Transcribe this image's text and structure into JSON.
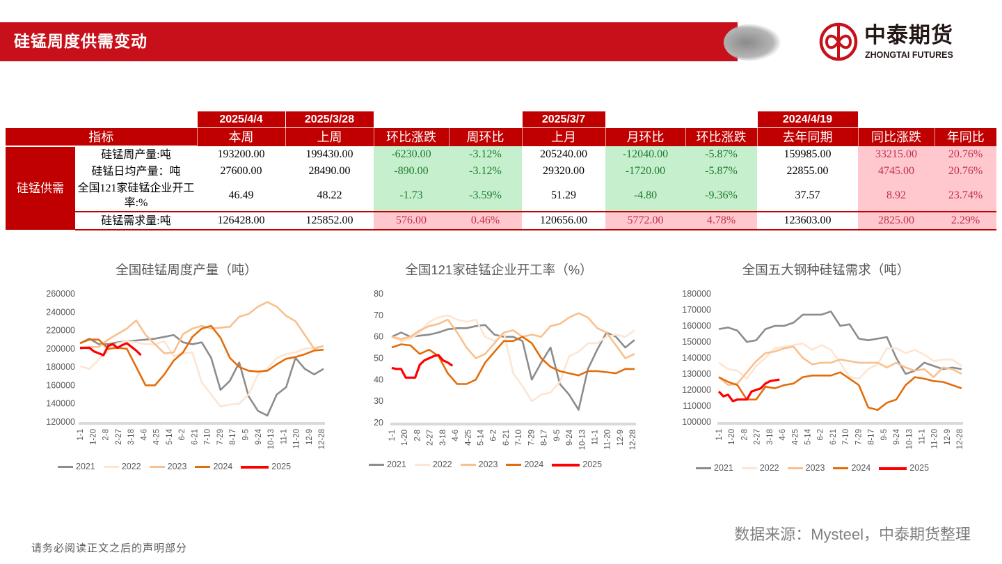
{
  "header": {
    "title": "硅锰周度供需变动"
  },
  "logo": {
    "name_cn": "中泰期货",
    "name_en": "ZHONGTAI FUTURES",
    "color": "#c8101a"
  },
  "table": {
    "dates": [
      "2025/4/4",
      "2025/3/28",
      "2025/3/7",
      "2024/4/19"
    ],
    "indicator_header": "指标",
    "headers": [
      "本周",
      "上周",
      "环比涨跌",
      "周环比",
      "上月",
      "月环比",
      "环比涨跌",
      "去年同期",
      "同比涨跌",
      "年同比"
    ],
    "group_label": "硅锰供需",
    "rows": [
      {
        "label": "硅锰周产量:吨",
        "values": [
          "193200.00",
          "199430.00",
          "-6230.00",
          "-3.12%",
          "205240.00",
          "-12040.00",
          "-5.87%",
          "159985.00",
          "33215.00",
          "20.76%"
        ]
      },
      {
        "label": "硅锰日均产量：吨",
        "values": [
          "27600.00",
          "28490.00",
          "-890.00",
          "-3.12%",
          "29320.00",
          "-1720.00",
          "-5.87%",
          "22855.00",
          "4745.00",
          "20.76%"
        ]
      },
      {
        "label": "全国121家硅锰企业开工率:%",
        "values": [
          "46.49",
          "48.22",
          "-1.73",
          "-3.59%",
          "51.29",
          "-4.80",
          "-9.36%",
          "37.57",
          "8.92",
          "23.74%"
        ]
      },
      {
        "label": "硅锰需求量:吨",
        "values": [
          "126428.00",
          "125852.00",
          "576.00",
          "0.46%",
          "120656.00",
          "5772.00",
          "4.78%",
          "123603.00",
          "2825.00",
          "2.29%"
        ]
      }
    ],
    "colors": {
      "header": "#c00000",
      "down_bg": "#c6efce",
      "up_bg": "#ffc7ce"
    }
  },
  "chart_data": [
    {
      "type": "line",
      "title": "全国硅锰周度产量（吨）",
      "ylim": [
        120000,
        260000
      ],
      "yticks": [
        120000,
        140000,
        160000,
        180000,
        200000,
        220000,
        240000,
        260000
      ],
      "xticks": [
        "1-1",
        "1-20",
        "2-8",
        "2-27",
        "3-18",
        "4-6",
        "4-25",
        "5-14",
        "6-2",
        "6-21",
        "7-10",
        "7-29",
        "8-17",
        "9-5",
        "9-24",
        "10-13",
        "11-1",
        "11-20",
        "12-9",
        "12-28"
      ],
      "x": [
        "1-1",
        "1-15",
        "1-29",
        "2-12",
        "2-26",
        "3-12",
        "3-26",
        "4-9",
        "4-23",
        "5-7",
        "5-21",
        "6-4",
        "6-18",
        "7-2",
        "7-16",
        "7-30",
        "8-13",
        "8-27",
        "9-10",
        "9-24",
        "10-8",
        "10-22",
        "11-5",
        "11-19",
        "12-3",
        "12-17",
        "12-31"
      ],
      "legend": "bottom",
      "series": [
        {
          "name": "2021",
          "color": "#8c8c8c",
          "values": [
            206000,
            211000,
            205000,
            205000,
            207000,
            208000,
            209000,
            210000,
            211000,
            213000,
            215000,
            207000,
            205000,
            207000,
            190000,
            155000,
            165000,
            185000,
            148000,
            132000,
            127000,
            150000,
            158000,
            190000,
            178000,
            172000,
            178000
          ]
        },
        {
          "name": "2022",
          "color": "#fde5d3",
          "values": [
            181000,
            178000,
            188000,
            198000,
            206000,
            208000,
            207000,
            205000,
            205000,
            208000,
            192000,
            195000,
            196000,
            163000,
            150000,
            137000,
            139000,
            140000,
            150000,
            172000,
            178000,
            190000,
            194000,
            196000,
            200000,
            201000,
            203000
          ]
        },
        {
          "name": "2023",
          "color": "#f8c08e",
          "values": [
            200000,
            202000,
            202000,
            210000,
            216000,
            222000,
            231000,
            215000,
            205000,
            195000,
            196000,
            216000,
            222000,
            225000,
            222000,
            223000,
            224000,
            235000,
            238000,
            246000,
            251000,
            246000,
            236000,
            230000,
            215000,
            200000,
            203000
          ]
        },
        {
          "name": "2024",
          "color": "#e36c0a",
          "values": [
            206000,
            210000,
            210000,
            200000,
            201000,
            200000,
            180000,
            160000,
            160000,
            172000,
            187000,
            196000,
            213000,
            222000,
            225000,
            212000,
            190000,
            180000,
            176000,
            175000,
            176000,
            183000,
            189000,
            191000,
            194000,
            198000,
            199000
          ]
        },
        {
          "name": "2025",
          "color": "#ff0000",
          "x": [
            "1-1",
            "1-8",
            "1-15",
            "1-22",
            "1-29",
            "2-5",
            "2-12",
            "2-19",
            "2-26",
            "3-5",
            "3-12",
            "3-19",
            "3-26",
            "4-2"
          ],
          "values": [
            201000,
            201000,
            201000,
            197000,
            195000,
            193000,
            203000,
            205000,
            201000,
            204000,
            206000,
            202000,
            198000,
            193000
          ]
        }
      ]
    },
    {
      "type": "line",
      "title": "全国121家硅锰企业开工率（%）",
      "ylim": [
        20,
        80
      ],
      "yticks": [
        20,
        30,
        40,
        50,
        60,
        70,
        80
      ],
      "xticks": [
        "1-1",
        "1-20",
        "2-8",
        "2-27",
        "3-18",
        "4-6",
        "4-25",
        "5-14",
        "6-2",
        "6-21",
        "7-10",
        "7-29",
        "8-17",
        "9-5",
        "9-24",
        "10-13",
        "11-1",
        "11-20",
        "12-9",
        "12-28"
      ],
      "x": [
        "1-1",
        "1-15",
        "1-29",
        "2-12",
        "2-26",
        "3-12",
        "3-26",
        "4-9",
        "4-23",
        "5-7",
        "5-21",
        "6-4",
        "6-18",
        "7-2",
        "7-16",
        "7-30",
        "8-13",
        "8-27",
        "9-10",
        "9-24",
        "10-8",
        "10-22",
        "11-5",
        "11-19",
        "12-3",
        "12-17",
        "12-31"
      ],
      "legend": "bottom",
      "series": [
        {
          "name": "2021",
          "color": "#8c8c8c",
          "values": [
            60,
            62,
            60,
            60.5,
            61,
            62,
            63.5,
            64,
            64,
            65,
            65.5,
            61,
            60,
            60,
            58,
            40,
            48,
            55,
            38,
            33,
            26,
            45,
            54,
            62,
            60,
            55,
            58.5
          ]
        },
        {
          "name": "2022",
          "color": "#fde5d3",
          "values": [
            60,
            58,
            59,
            62,
            67,
            69,
            70,
            68,
            67,
            68,
            60,
            58,
            62,
            43,
            37,
            30,
            33,
            34,
            39,
            51,
            53,
            57,
            57,
            60,
            61,
            60,
            63
          ]
        },
        {
          "name": "2023",
          "color": "#f8c08e",
          "values": [
            60,
            59,
            60,
            63,
            65,
            66,
            68,
            62,
            55,
            50,
            52,
            57,
            62,
            63,
            60,
            61,
            60,
            65,
            66,
            69,
            71,
            69,
            64,
            62,
            56,
            50,
            52
          ]
        },
        {
          "name": "2024",
          "color": "#e36c0a",
          "values": [
            55,
            56.5,
            56,
            52,
            54,
            51,
            43,
            38,
            38,
            40,
            48,
            53,
            58,
            58,
            60,
            57,
            50,
            46,
            44,
            43,
            42,
            44,
            44,
            43.5,
            43,
            45,
            45
          ]
        },
        {
          "name": "2025",
          "color": "#ff0000",
          "x": [
            "1-1",
            "1-8",
            "1-15",
            "1-22",
            "1-29",
            "2-5",
            "2-12",
            "2-19",
            "2-26",
            "3-5",
            "3-12",
            "3-19",
            "3-26",
            "4-2"
          ],
          "values": [
            45.5,
            45,
            45,
            41,
            41,
            41,
            47,
            49,
            50,
            51,
            51.5,
            49,
            48,
            46.5
          ]
        }
      ]
    },
    {
      "type": "line",
      "title": "全国五大钢种硅锰需求（吨）",
      "ylim": [
        100000,
        180000
      ],
      "yticks": [
        100000,
        110000,
        120000,
        130000,
        140000,
        150000,
        160000,
        170000,
        180000
      ],
      "xticks": [
        "1-1",
        "1-20",
        "2-8",
        "2-27",
        "3-18",
        "4-6",
        "4-25",
        "5-14",
        "6-2",
        "6-21",
        "7-10",
        "7-29",
        "8-17",
        "9-5",
        "9-24",
        "10-13",
        "11-1",
        "11-20",
        "12-9",
        "12-28"
      ],
      "x": [
        "1-1",
        "1-15",
        "1-29",
        "2-12",
        "2-26",
        "3-12",
        "3-26",
        "4-9",
        "4-23",
        "5-7",
        "5-21",
        "6-4",
        "6-18",
        "7-2",
        "7-16",
        "7-30",
        "8-13",
        "8-27",
        "9-10",
        "9-24",
        "10-8",
        "10-22",
        "11-5",
        "11-19",
        "12-3",
        "12-17",
        "12-31"
      ],
      "legend": "bottom",
      "series": [
        {
          "name": "2021",
          "color": "#8c8c8c",
          "values": [
            158000,
            159000,
            157000,
            150000,
            151000,
            158000,
            160000,
            160000,
            162000,
            167000,
            167000,
            167000,
            169000,
            160000,
            161000,
            152000,
            151000,
            152000,
            153000,
            140000,
            130000,
            132000,
            137000,
            135000,
            133000,
            134000,
            133000
          ]
        },
        {
          "name": "2022",
          "color": "#fde5d3",
          "values": [
            137000,
            133000,
            132000,
            127000,
            135000,
            140000,
            146000,
            147000,
            148000,
            149000,
            145000,
            148000,
            145000,
            137000,
            128000,
            127000,
            133000,
            136000,
            146000,
            146000,
            143000,
            145000,
            142000,
            138000,
            139000,
            139000,
            135000
          ]
        },
        {
          "name": "2023",
          "color": "#f8c08e",
          "values": [
            128000,
            123000,
            124000,
            131000,
            138000,
            143000,
            144000,
            146000,
            147000,
            140000,
            136000,
            137000,
            137000,
            139000,
            138000,
            137000,
            137000,
            137000,
            134000,
            137000,
            134000,
            132000,
            133000,
            128000,
            134000,
            133000,
            130000
          ]
        },
        {
          "name": "2024",
          "color": "#e36c0a",
          "values": [
            128000,
            125000,
            123000,
            114000,
            114000,
            122000,
            121000,
            123000,
            124000,
            128000,
            129000,
            129000,
            129000,
            131000,
            127000,
            123000,
            109000,
            107500,
            112000,
            114000,
            123000,
            128000,
            127000,
            125500,
            125000,
            123000,
            121000
          ]
        },
        {
          "name": "2025",
          "color": "#ff0000",
          "x": [
            "1-1",
            "1-8",
            "1-15",
            "1-22",
            "1-29",
            "2-5",
            "2-12",
            "2-19",
            "2-26",
            "3-5",
            "3-12",
            "3-19",
            "3-26",
            "4-2"
          ],
          "values": [
            119000,
            116000,
            117000,
            113000,
            114000,
            114000,
            114000,
            119000,
            120000,
            121000,
            124000,
            125500,
            126000,
            126500
          ]
        }
      ]
    }
  ],
  "footer": {
    "disclaimer": "请务必阅读正文之后的声明部分",
    "source": "数据来源：Mysteel，中泰期货整理"
  }
}
